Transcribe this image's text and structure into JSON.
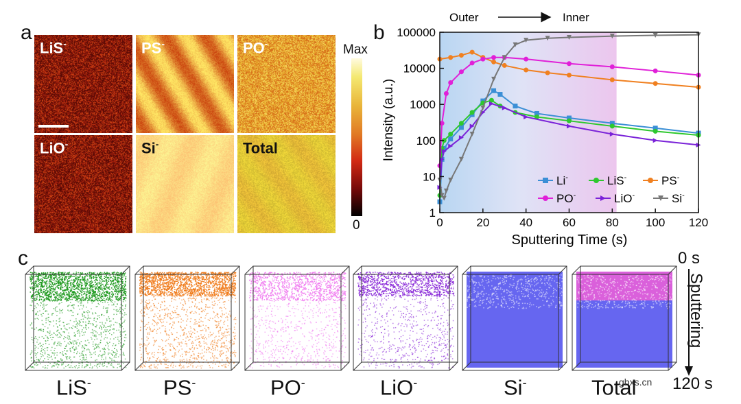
{
  "panels": {
    "a": "a",
    "b": "b",
    "c": "c"
  },
  "panel_a": {
    "maps": [
      {
        "label": "LiS",
        "sup": "-",
        "theme": "dark-red",
        "label_color": "#ffffff"
      },
      {
        "label": "PS",
        "sup": "-",
        "theme": "streak-orange",
        "label_color": "#ffffff"
      },
      {
        "label": "PO",
        "sup": "-",
        "theme": "orange-yellow",
        "label_color": "#ffffff"
      },
      {
        "label": "LiO",
        "sup": "-",
        "theme": "dark-red",
        "label_color": "#ffffff"
      },
      {
        "label": "Si",
        "sup": "-",
        "theme": "pale-yellow",
        "label_color": "#111111"
      },
      {
        "label": "Total",
        "sup": "",
        "theme": "bright-yellow",
        "label_color": "#111111"
      }
    ],
    "colorbar": {
      "max_label": "Max",
      "min_label": "0"
    }
  },
  "chart_data": {
    "type": "line",
    "title": "",
    "xlabel": "Sputtering Time (s)",
    "ylabel": "Intensity (a.u.)",
    "xlim": [
      0,
      120
    ],
    "ylim": [
      1,
      100000
    ],
    "yscale": "log",
    "xticks": [
      "0",
      "20",
      "40",
      "60",
      "80",
      "100",
      "120"
    ],
    "yticks": [
      "1",
      "10",
      "100",
      "1000",
      "10000",
      "100000"
    ],
    "top_annotation": {
      "left": "Outer",
      "right": "Inner"
    },
    "shaded_region_x": [
      0,
      82
    ],
    "legend_position": "bottom-right",
    "series": [
      {
        "name": "Li",
        "sup": "-",
        "color": "#3b8fd6",
        "marker": "square",
        "x": [
          0,
          1,
          2,
          5,
          10,
          15,
          20,
          25,
          28,
          35,
          45,
          60,
          80,
          100,
          120
        ],
        "values": [
          2,
          30,
          60,
          110,
          230,
          520,
          1250,
          2400,
          1900,
          900,
          560,
          420,
          300,
          220,
          160
        ]
      },
      {
        "name": "LiS",
        "sup": "-",
        "color": "#2ec82e",
        "marker": "circle",
        "x": [
          0,
          1,
          2,
          5,
          10,
          15,
          20,
          24,
          28,
          35,
          45,
          60,
          80,
          100,
          120
        ],
        "values": [
          3,
          60,
          100,
          150,
          300,
          600,
          1100,
          1300,
          900,
          600,
          450,
          350,
          250,
          180,
          140
        ]
      },
      {
        "name": "PS",
        "sup": "-",
        "color": "#f08020",
        "marker": "circle",
        "x": [
          0,
          5,
          10,
          15,
          20,
          25,
          30,
          40,
          50,
          60,
          80,
          100,
          120
        ],
        "values": [
          18000,
          20000,
          23000,
          28000,
          20000,
          15000,
          12000,
          9000,
          7500,
          6500,
          4800,
          3800,
          3000
        ]
      },
      {
        "name": "PO",
        "sup": "-",
        "color": "#e020d8",
        "marker": "circle",
        "x": [
          0,
          1,
          3,
          5,
          10,
          15,
          20,
          25,
          30,
          40,
          60,
          80,
          100,
          120
        ],
        "values": [
          20,
          300,
          2000,
          4000,
          8000,
          14000,
          18000,
          20000,
          20000,
          18000,
          13500,
          11000,
          8500,
          6500
        ]
      },
      {
        "name": "LiO",
        "sup": "-",
        "color": "#7a22d8",
        "marker": "triangle-right",
        "x": [
          0,
          1,
          2,
          5,
          10,
          15,
          20,
          24,
          30,
          40,
          60,
          80,
          100,
          120
        ],
        "values": [
          5,
          30,
          50,
          70,
          120,
          250,
          600,
          1050,
          800,
          450,
          250,
          150,
          100,
          75
        ]
      },
      {
        "name": "Si",
        "sup": "-",
        "color": "#777777",
        "marker": "triangle-down",
        "x": [
          0,
          1,
          2,
          3,
          5,
          10,
          15,
          20,
          25,
          30,
          35,
          40,
          50,
          60,
          80,
          100,
          120
        ],
        "values": [
          8,
          3,
          2.5,
          4,
          8,
          30,
          150,
          800,
          5000,
          20000,
          45000,
          60000,
          68000,
          72000,
          78000,
          82000,
          85000
        ]
      }
    ]
  },
  "panel_c": {
    "cubes": [
      {
        "label": "LiS",
        "sup": "-",
        "color": "#1f9a1f",
        "top_fraction": 0.3,
        "density": "medium"
      },
      {
        "label": "PS",
        "sup": "-",
        "color": "#f07b1a",
        "top_fraction": 0.25,
        "density": "medium"
      },
      {
        "label": "PO",
        "sup": "-",
        "color": "#f07cf0",
        "top_fraction": 0.3,
        "density": "light"
      },
      {
        "label": "LiO",
        "sup": "-",
        "color": "#8a2ad8",
        "top_fraction": 0.25,
        "density": "light"
      },
      {
        "label": "Si",
        "sup": "-",
        "color": "#5555ee",
        "top_fraction": 0.2,
        "density": "solid"
      },
      {
        "label": "Total",
        "sup": "",
        "color": "#5555ee",
        "top_color": "#f060d8",
        "top_fraction": 0.3,
        "density": "solid"
      }
    ],
    "side_top_label": "0 s",
    "side_bottom_label": "120 s",
    "side_arrow_label": "Sputtering"
  },
  "watermark": "gbxs.cn"
}
